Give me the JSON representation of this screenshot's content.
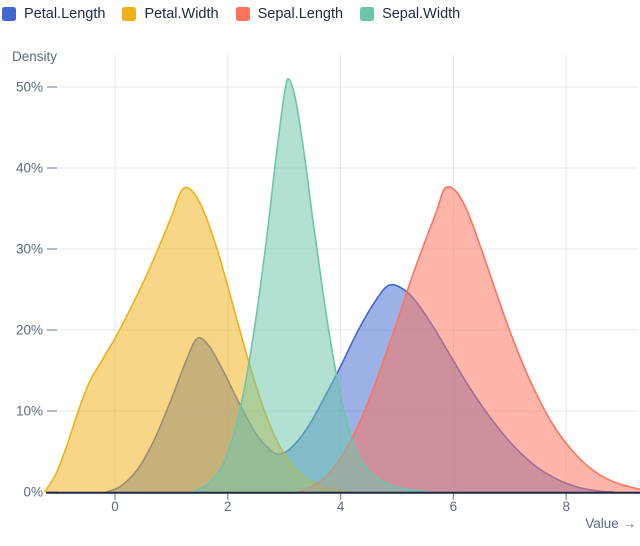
{
  "chart_data": {
    "type": "area",
    "subtype": "kernel-density",
    "title": "",
    "xlabel": "Value →",
    "ylabel": "Density",
    "grid": true,
    "legend_position": "top-left",
    "xlim": [
      -1.35,
      9.35
    ],
    "ylim_percent": [
      0,
      53
    ],
    "x_ticks": [
      {
        "v": 0,
        "label": "0"
      },
      {
        "v": 2,
        "label": "2"
      },
      {
        "v": 4,
        "label": "4"
      },
      {
        "v": 6,
        "label": "6"
      },
      {
        "v": 8,
        "label": "8"
      }
    ],
    "y_ticks": [
      {
        "pct": 0,
        "label": "0%"
      },
      {
        "pct": 10,
        "label": "10%"
      },
      {
        "pct": 20,
        "label": "20%"
      },
      {
        "pct": 30,
        "label": "30%"
      },
      {
        "pct": 40,
        "label": "40%"
      },
      {
        "pct": 50,
        "label": "50%"
      }
    ],
    "series": [
      {
        "name": "Petal.Length",
        "color": "#4269d0",
        "peaks": [
          {
            "x": 1.45,
            "density_pct": 18.9
          },
          {
            "x": 4.85,
            "density_pct": 25.5
          }
        ],
        "points": [
          [
            -0.15,
            0
          ],
          [
            0.1,
            0.7
          ],
          [
            0.4,
            2.8
          ],
          [
            0.7,
            6.5
          ],
          [
            1.0,
            11.5
          ],
          [
            1.25,
            16
          ],
          [
            1.45,
            18.9
          ],
          [
            1.65,
            18.2
          ],
          [
            1.9,
            15.2
          ],
          [
            2.2,
            11
          ],
          [
            2.5,
            7.2
          ],
          [
            2.75,
            5.2
          ],
          [
            2.9,
            4.7
          ],
          [
            3.1,
            5.3
          ],
          [
            3.4,
            7.8
          ],
          [
            3.7,
            11.5
          ],
          [
            4.0,
            15.5
          ],
          [
            4.3,
            19.8
          ],
          [
            4.6,
            23.4
          ],
          [
            4.85,
            25.5
          ],
          [
            5.1,
            25.1
          ],
          [
            5.35,
            23.4
          ],
          [
            5.65,
            20.3
          ],
          [
            5.95,
            16.8
          ],
          [
            6.25,
            13.3
          ],
          [
            6.6,
            9.7
          ],
          [
            7.0,
            6.2
          ],
          [
            7.4,
            3.5
          ],
          [
            7.8,
            1.7
          ],
          [
            8.2,
            0.6
          ],
          [
            8.6,
            0.1
          ],
          [
            8.85,
            0
          ]
        ]
      },
      {
        "name": "Petal.Width",
        "color": "#efb118",
        "peaks": [
          {
            "x": 1.2,
            "density_pct": 37.5
          }
        ],
        "points": [
          [
            -1.25,
            0
          ],
          [
            -1.05,
            2.2
          ],
          [
            -0.85,
            5.8
          ],
          [
            -0.65,
            10
          ],
          [
            -0.45,
            13.6
          ],
          [
            -0.2,
            16.6
          ],
          [
            0.05,
            19.6
          ],
          [
            0.3,
            23
          ],
          [
            0.55,
            26.6
          ],
          [
            0.8,
            30.6
          ],
          [
            1.0,
            34
          ],
          [
            1.2,
            37.4
          ],
          [
            1.4,
            36.9
          ],
          [
            1.6,
            34.2
          ],
          [
            1.8,
            30.2
          ],
          [
            2.0,
            25.4
          ],
          [
            2.2,
            20.3
          ],
          [
            2.4,
            15.4
          ],
          [
            2.6,
            11
          ],
          [
            2.8,
            7.4
          ],
          [
            3.0,
            4.7
          ],
          [
            3.2,
            2.8
          ],
          [
            3.45,
            1.4
          ],
          [
            3.7,
            0.6
          ],
          [
            3.95,
            0.15
          ],
          [
            4.15,
            0
          ]
        ]
      },
      {
        "name": "Sepal.Length",
        "color": "#ff725c",
        "peaks": [
          {
            "x": 5.85,
            "density_pct": 37.5
          }
        ],
        "points": [
          [
            3.25,
            0
          ],
          [
            3.5,
            0.7
          ],
          [
            3.75,
            2
          ],
          [
            4.0,
            4.2
          ],
          [
            4.25,
            7.3
          ],
          [
            4.5,
            11.3
          ],
          [
            4.75,
            16
          ],
          [
            5.0,
            21
          ],
          [
            5.25,
            26.2
          ],
          [
            5.5,
            31
          ],
          [
            5.7,
            34.6
          ],
          [
            5.85,
            37.5
          ],
          [
            6.05,
            37.1
          ],
          [
            6.25,
            34.6
          ],
          [
            6.5,
            29.9
          ],
          [
            6.75,
            24.8
          ],
          [
            7.0,
            19.9
          ],
          [
            7.25,
            15.5
          ],
          [
            7.5,
            11.7
          ],
          [
            7.75,
            8.5
          ],
          [
            8.0,
            6
          ],
          [
            8.3,
            3.7
          ],
          [
            8.6,
            2.1
          ],
          [
            8.9,
            1.1
          ],
          [
            9.2,
            0.5
          ],
          [
            9.45,
            0.2
          ]
        ]
      },
      {
        "name": "Sepal.Width",
        "color": "#6cc5ab",
        "peaks": [
          {
            "x": 3.05,
            "density_pct": 51
          }
        ],
        "points": [
          [
            1.4,
            0
          ],
          [
            1.65,
            1
          ],
          [
            1.9,
            3.2
          ],
          [
            2.1,
            7
          ],
          [
            2.3,
            13
          ],
          [
            2.5,
            21.5
          ],
          [
            2.7,
            32
          ],
          [
            2.85,
            41
          ],
          [
            3.0,
            49
          ],
          [
            3.08,
            51
          ],
          [
            3.2,
            48.5
          ],
          [
            3.35,
            42
          ],
          [
            3.5,
            34
          ],
          [
            3.65,
            26.5
          ],
          [
            3.8,
            19.5
          ],
          [
            4.0,
            11.8
          ],
          [
            4.2,
            6.6
          ],
          [
            4.4,
            3.5
          ],
          [
            4.65,
            1.7
          ],
          [
            4.95,
            0.7
          ],
          [
            5.3,
            0.2
          ],
          [
            5.6,
            0
          ]
        ]
      }
    ]
  },
  "colors": {
    "background": "#ffffff",
    "grid": "#e5e8ed",
    "axis_line": "#1c2a45",
    "tick_dash": "#8795a8",
    "tick_text": "#5a6a80",
    "legend_text": "#1b2a41",
    "fill_opacity": 0.52
  }
}
